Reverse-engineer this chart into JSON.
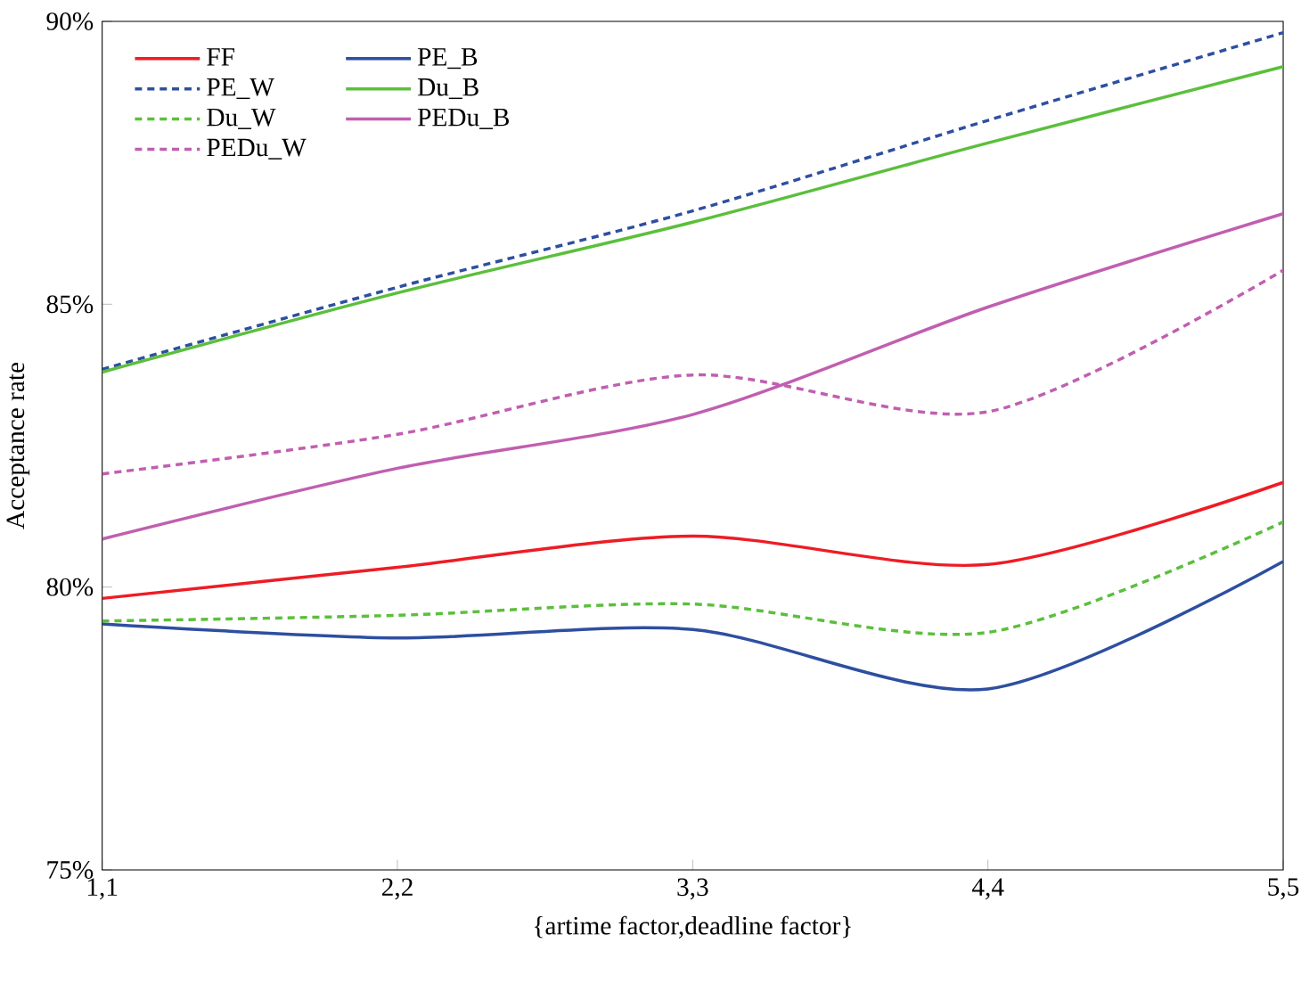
{
  "chart_data": {
    "type": "line",
    "xlabel": "{artime factor,deadline factor}",
    "ylabel": "Acceptance rate",
    "categories": [
      "1,1",
      "2,2",
      "3,3",
      "4,4",
      "5,5"
    ],
    "ylim": [
      75,
      90
    ],
    "yticks": [
      {
        "value": 75,
        "label": "75%"
      },
      {
        "value": 80,
        "label": "80%"
      },
      {
        "value": 85,
        "label": "85%"
      },
      {
        "value": 90,
        "label": "90%"
      }
    ],
    "grid": false,
    "legend": "top left",
    "marker": "none",
    "series": [
      {
        "name": "FF",
        "color": "#ee1c25",
        "line_style": "solid",
        "values": [
          79.8,
          80.35,
          80.9,
          80.4,
          81.85
        ]
      },
      {
        "name": "PE_B",
        "color": "#2e4fa0",
        "line_style": "solid",
        "values": [
          79.35,
          79.1,
          79.25,
          78.2,
          80.45
        ]
      },
      {
        "name": "PE_W",
        "color": "#2e4fa0",
        "line_style": "dashed",
        "values": [
          83.85,
          85.3,
          86.65,
          88.25,
          89.8
        ]
      },
      {
        "name": "Du_B",
        "color": "#5bbf3c",
        "line_style": "solid",
        "values": [
          83.8,
          85.2,
          86.45,
          87.85,
          89.2
        ]
      },
      {
        "name": "Du_W",
        "color": "#5bbf3c",
        "line_style": "dashed",
        "values": [
          79.4,
          79.5,
          79.7,
          79.2,
          81.15
        ]
      },
      {
        "name": "PEDu_B",
        "color": "#c05fb0",
        "line_style": "solid",
        "values": [
          80.85,
          82.1,
          83.05,
          84.95,
          86.6
        ]
      },
      {
        "name": "PEDu_W",
        "color": "#c05fb0",
        "line_style": "dashed",
        "values": [
          82.0,
          82.7,
          83.75,
          83.1,
          85.6
        ]
      }
    ]
  }
}
